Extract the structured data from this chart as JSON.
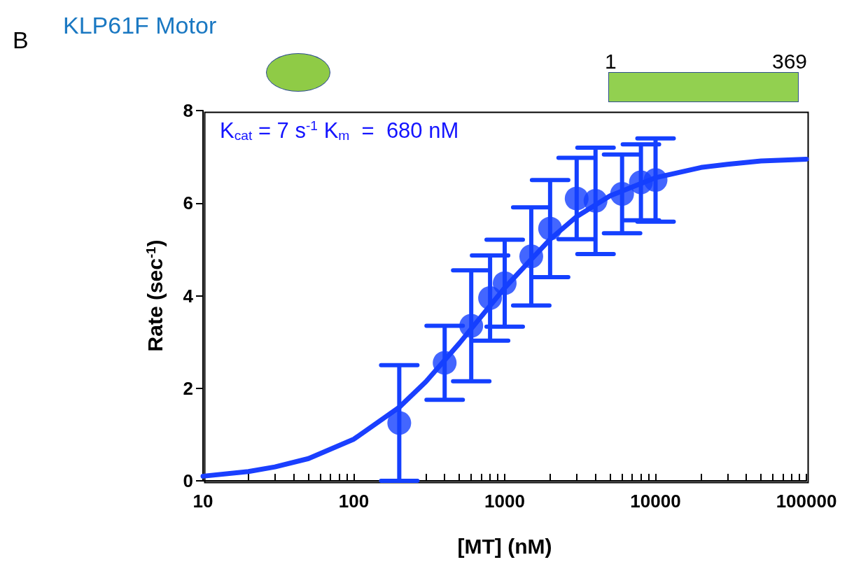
{
  "chart_data": {
    "type": "scatter",
    "title": "KLP61F Motor",
    "xlabel": "[MT] (nM)",
    "ylabel": "Rate (sec$^{-1}$)",
    "annotations": [
      "B",
      "1",
      "369",
      "K$_{cat}$ = 7 s$^{-1}$ K$_{m}$  =  680 nM"
    ],
    "log": "x",
    "xlim": [
      10,
      100000
    ],
    "xticks": [
      10,
      {
        "value": 20,
        "label": null
      },
      {
        "value": 30,
        "label": null
      },
      {
        "value": 40,
        "label": null
      },
      {
        "value": 50,
        "label": null
      },
      {
        "value": 60,
        "label": null
      },
      {
        "value": 70,
        "label": null
      },
      {
        "value": 80,
        "label": null
      },
      {
        "value": 90,
        "label": null
      },
      100,
      {
        "value": 200,
        "label": null
      },
      {
        "value": 300,
        "label": null
      },
      {
        "value": 400,
        "label": null
      },
      {
        "value": 500,
        "label": null
      },
      {
        "value": 600,
        "label": null
      },
      {
        "value": 700,
        "label": null
      },
      {
        "value": 800,
        "label": null
      },
      {
        "value": 900,
        "label": null
      },
      1000,
      {
        "value": 2000,
        "label": null
      },
      {
        "value": 3000,
        "label": null
      },
      {
        "value": 4000,
        "label": null
      },
      {
        "value": 5000,
        "label": null
      },
      {
        "value": 6000,
        "label": null
      },
      {
        "value": 7000,
        "label": null
      },
      {
        "value": 8000,
        "label": null
      },
      {
        "value": 9000,
        "label": null
      },
      10000,
      {
        "value": 20000,
        "label": null
      },
      {
        "value": 30000,
        "label": null
      },
      {
        "value": 40000,
        "label": null
      },
      {
        "value": 50000,
        "label": null
      },
      {
        "value": 60000,
        "label": null
      },
      {
        "value": 70000,
        "label": null
      },
      {
        "value": 80000,
        "label": null
      },
      {
        "value": 90000,
        "label": null
      },
      100000
    ],
    "ylim": [
      0,
      8
    ],
    "yticks": [
      0,
      2,
      4,
      6,
      8
    ],
    "grid": false,
    "marker": "circle",
    "line_style": "solid",
    "series": [
      {
        "color": "#1440ff",
        "x": [
          200,
          400,
          600,
          800,
          1000,
          1500,
          2000,
          3000,
          4000,
          6000,
          8000,
          10000
        ],
        "values": [
          1.25,
          2.55,
          3.35,
          3.95,
          4.27,
          4.85,
          5.45,
          6.1,
          6.05,
          6.2,
          6.45,
          6.5
        ],
        "errors": [
          1.25,
          0.8,
          1.2,
          0.92,
          0.94,
          1.06,
          1.05,
          0.88,
          1.15,
          0.85,
          0.82,
          0.9
        ]
      },
      {
        "type": "line",
        "color": "#1a3fff",
        "marker": "none",
        "x": [
          10,
          20,
          30,
          50,
          100,
          200,
          300,
          500,
          1000,
          2000,
          3000,
          5000,
          10000,
          20000,
          30000,
          50000,
          100000
        ],
        "values": [
          0.1,
          0.2,
          0.3,
          0.48,
          0.9,
          1.59,
          2.14,
          2.97,
          4.17,
          5.22,
          5.71,
          6.16,
          6.55,
          6.77,
          6.84,
          6.91,
          6.95
        ]
      }
    ]
  }
}
